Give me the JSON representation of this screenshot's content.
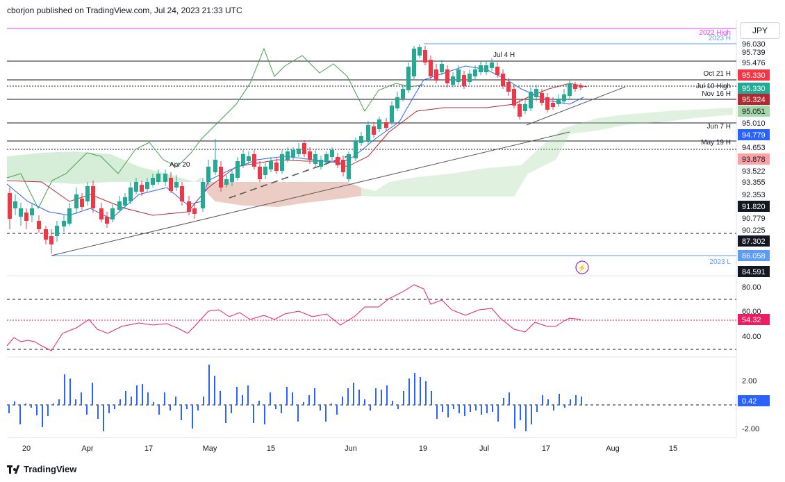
{
  "header": {
    "publisher": "cborjon published on TradingView.com, Jul 24, 2023 21:33 UTC"
  },
  "symbol_button": {
    "label": "JPY"
  },
  "footer": {
    "brand": "TradingView"
  },
  "colors": {
    "up": "#22ab94",
    "down": "#f23645",
    "fast_line": "#2962ff",
    "slow_line": "#b22833",
    "lagging": "#43a047",
    "cloud_bull": "#a5d6a7",
    "cloud_bear": "#faa1a4",
    "rsi": "#e91e63",
    "bars": "#2962ff",
    "purple": "#e040fb"
  },
  "chart_data": [
    {
      "type": "candlestick",
      "name": "price",
      "yticks": [
        "96.030",
        "95.739",
        "95.476",
        "95.330",
        "95.330",
        "95.324",
        "95.051",
        "95.010",
        "94.779",
        "94.653",
        "93.878",
        "93.522",
        "93.355",
        "92.353",
        "91.820",
        "90.779",
        "90.225",
        "87.302",
        "86.058",
        "84.591"
      ],
      "price_tags": [
        {
          "label": "95.330",
          "color": "#f23645"
        },
        {
          "label": "95.330",
          "color": "#22ab94"
        },
        {
          "label": "95.324",
          "color": "#b22833"
        },
        {
          "label": "95.051",
          "color": "#a5d6a7"
        },
        {
          "label": "94.779",
          "color": "#2962ff"
        },
        {
          "label": "93.878",
          "color": "#faa1a4"
        },
        {
          "label": "91.820",
          "color": "#131722"
        },
        {
          "label": "90.779",
          "color": "#ffffff"
        },
        {
          "label": "90.225",
          "color": "#ffffff"
        },
        {
          "label": "87.302",
          "color": "#131722"
        },
        {
          "label": "86.058",
          "color": "#5b9cf6"
        },
        {
          "label": "84.591",
          "color": "#131722"
        }
      ],
      "line_labels": [
        "2022 High",
        "2023 H",
        "Jul 4 H",
        "Oct 21 H",
        "Jul 10 High",
        "Nov 16 H",
        "Jun 7 H",
        "May 19 H",
        "Apr 20",
        "2023 L"
      ],
      "xticks": [
        "20",
        "Apr",
        "17",
        "May",
        "15",
        "Jun",
        "19",
        "Jul",
        "17",
        "Aug",
        "15"
      ]
    },
    {
      "type": "line",
      "name": "rsi",
      "yticks": [
        "80.00",
        "60.00",
        "40.00"
      ],
      "last_value": "54.32"
    },
    {
      "type": "bar",
      "name": "oscillator",
      "yticks": [
        "2.00",
        "-2.00"
      ],
      "last_value": "0.42"
    }
  ]
}
